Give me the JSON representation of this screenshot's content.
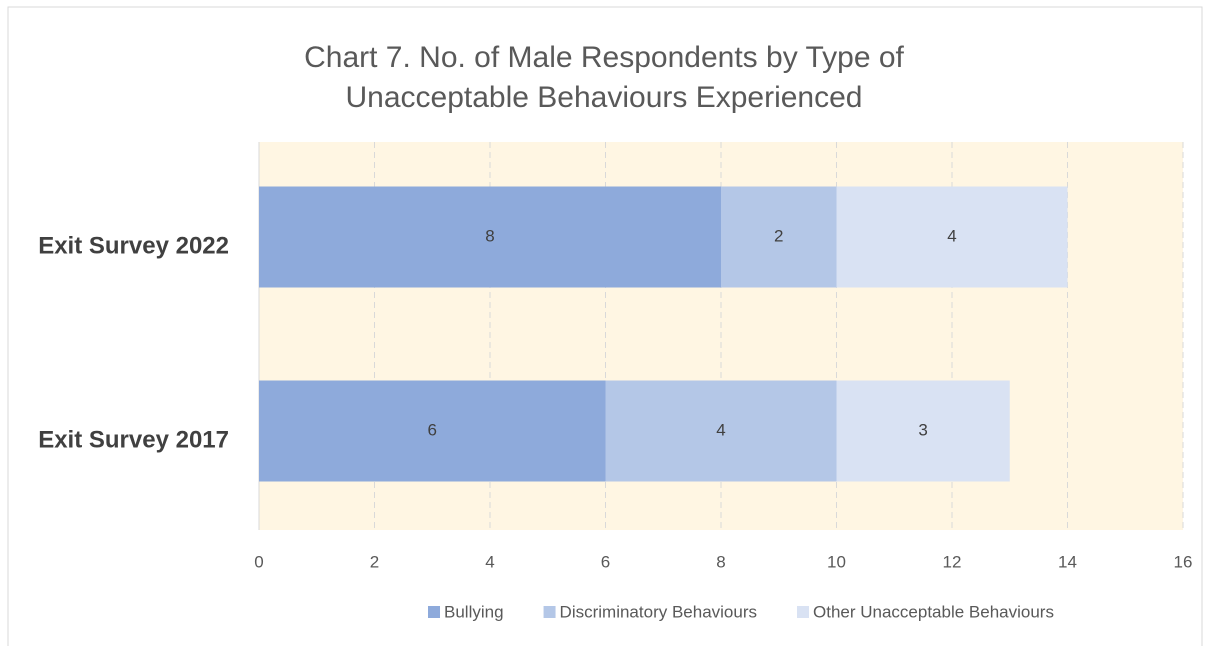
{
  "chart_data": {
    "type": "stacked_bar_horizontal",
    "title": "Chart 7. No. of Male Respondents by Type of Unacceptable Behaviours Experienced",
    "categories": [
      "Exit Survey 2022",
      "Exit Survey 2017"
    ],
    "series": [
      {
        "name": "Bullying",
        "color": "#8eaadb",
        "values": [
          8,
          6
        ]
      },
      {
        "name": "Discriminatory Behaviours",
        "color": "#b4c7e7",
        "values": [
          2,
          4
        ]
      },
      {
        "name": "Other Unacceptable Behaviours",
        "color": "#d9e2f3",
        "values": [
          4,
          3
        ]
      }
    ],
    "xlim": [
      0,
      16
    ],
    "xticks": [
      0,
      2,
      4,
      6,
      8,
      10,
      12,
      14,
      16
    ],
    "grid": true,
    "legend": "bottom",
    "plot_background": "#fff6e3"
  }
}
